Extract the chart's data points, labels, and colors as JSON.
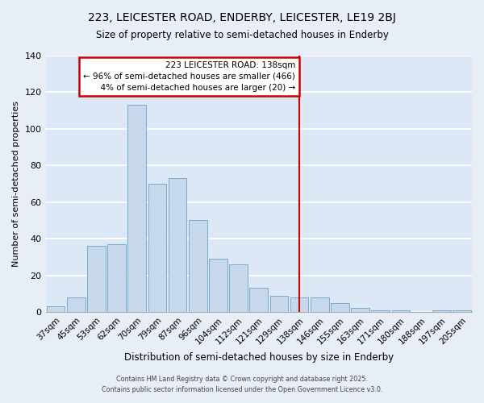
{
  "title": "223, LEICESTER ROAD, ENDERBY, LEICESTER, LE19 2BJ",
  "subtitle": "Size of property relative to semi-detached houses in Enderby",
  "xlabel": "Distribution of semi-detached houses by size in Enderby",
  "ylabel": "Number of semi-detached properties",
  "bar_color": "#c8d8ec",
  "bar_edge_color": "#7aaac8",
  "plot_bg_color": "#dce8f5",
  "fig_bg_color": "#e8eef5",
  "grid_color": "#ffffff",
  "categories": [
    "37sqm",
    "45sqm",
    "53sqm",
    "62sqm",
    "70sqm",
    "79sqm",
    "87sqm",
    "96sqm",
    "104sqm",
    "112sqm",
    "121sqm",
    "129sqm",
    "138sqm",
    "146sqm",
    "155sqm",
    "163sqm",
    "171sqm",
    "180sqm",
    "188sqm",
    "197sqm",
    "205sqm"
  ],
  "values": [
    3,
    8,
    36,
    37,
    113,
    70,
    73,
    50,
    29,
    26,
    13,
    9,
    8,
    8,
    5,
    2,
    1,
    1,
    0,
    1,
    1
  ],
  "ylim": [
    0,
    140
  ],
  "yticks": [
    0,
    20,
    40,
    60,
    80,
    100,
    120,
    140
  ],
  "property_label": "223 LEICESTER ROAD: 138sqm",
  "pct_smaller": 96,
  "pct_larger": 4,
  "count_smaller": 466,
  "count_larger": 20,
  "red_line_index": 12,
  "red_line_color": "#cc0000",
  "ann_box_facecolor": "#ffffff",
  "ann_box_edgecolor": "#cc0000",
  "footer_line1": "Contains HM Land Registry data © Crown copyright and database right 2025.",
  "footer_line2": "Contains public sector information licensed under the Open Government Licence v3.0."
}
